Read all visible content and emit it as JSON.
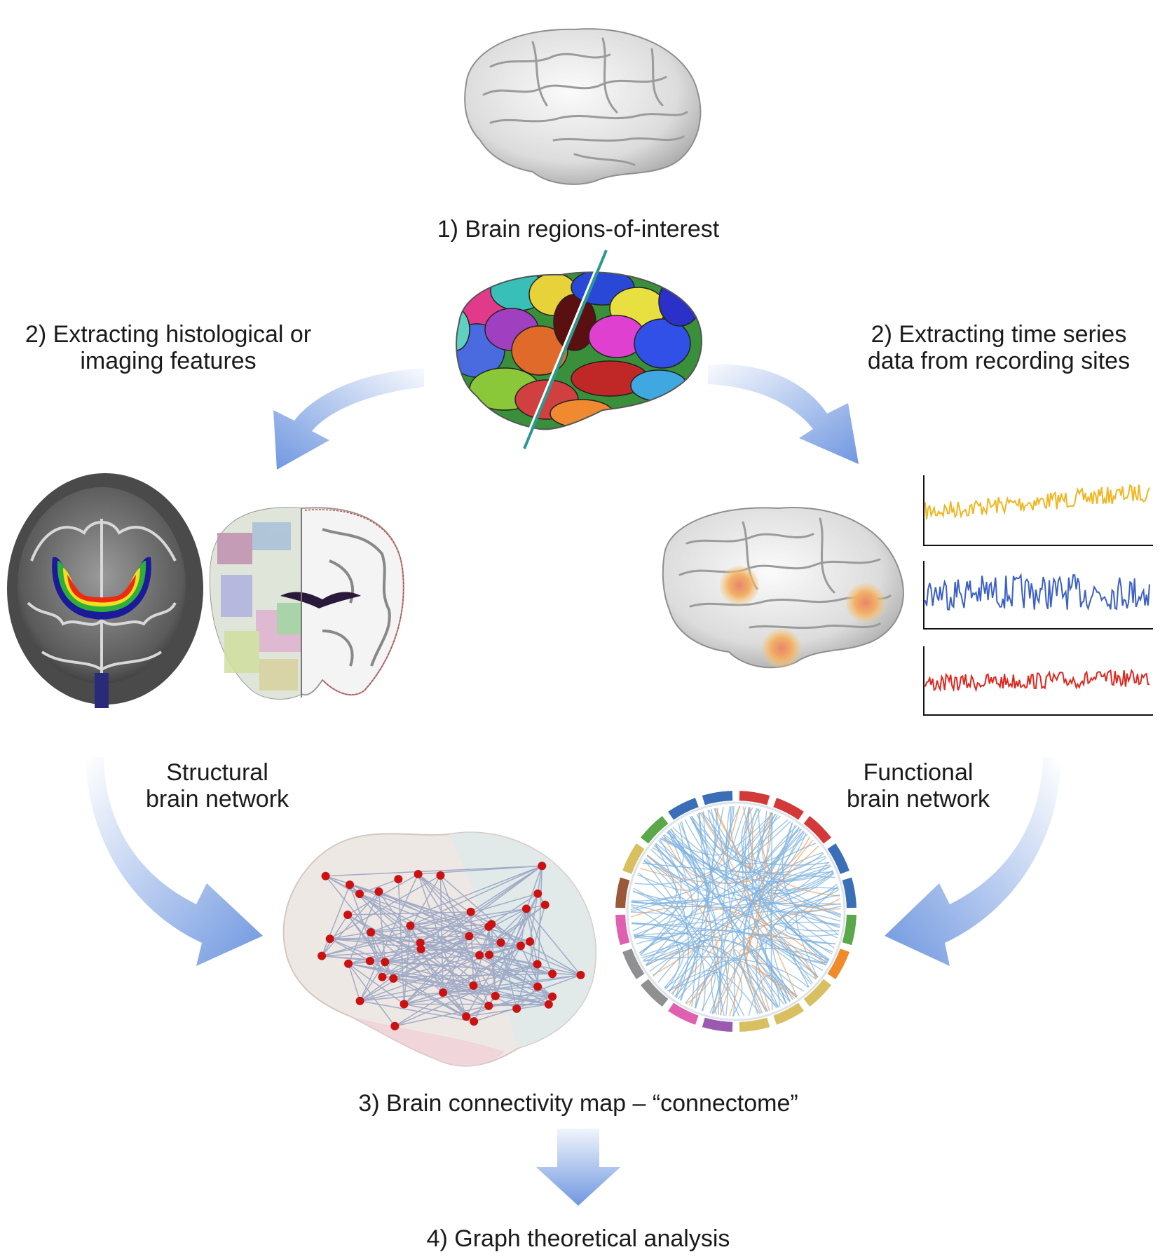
{
  "steps": {
    "step1": "1) Brain regions-of-interest",
    "step2_left_line1": "2) Extracting histological or",
    "step2_left_line2": "imaging features",
    "step2_right_line1": "2) Extracting time series",
    "step2_right_line2": "data from recording sites",
    "structural_line1": "Structural",
    "structural_line2": "brain network",
    "functional_line1": "Functional",
    "functional_line2": "brain network",
    "step3": "3) Brain connectivity map – “connectome”",
    "step4": "4) Graph theoretical analysis"
  },
  "colors": {
    "arrow": "#6f97e0",
    "trace_top": "#f0b51f",
    "trace_middle": "#3b5fc4",
    "trace_bottom": "#e0261e",
    "network_node": "#cc1111",
    "network_edge": "#8e9cbf",
    "chord_edge": "#7fb2de",
    "chord_edge_alt": "#f0a060",
    "divider_line": "#2a9a90"
  },
  "icons": [
    "brain-lateral-icon",
    "parcellated-brain-icon",
    "coronal-mri-icon",
    "coronal-atlas-slice-icon",
    "brain-recording-sites-icon",
    "structural-network-icon",
    "functional-chord-diagram-icon"
  ]
}
